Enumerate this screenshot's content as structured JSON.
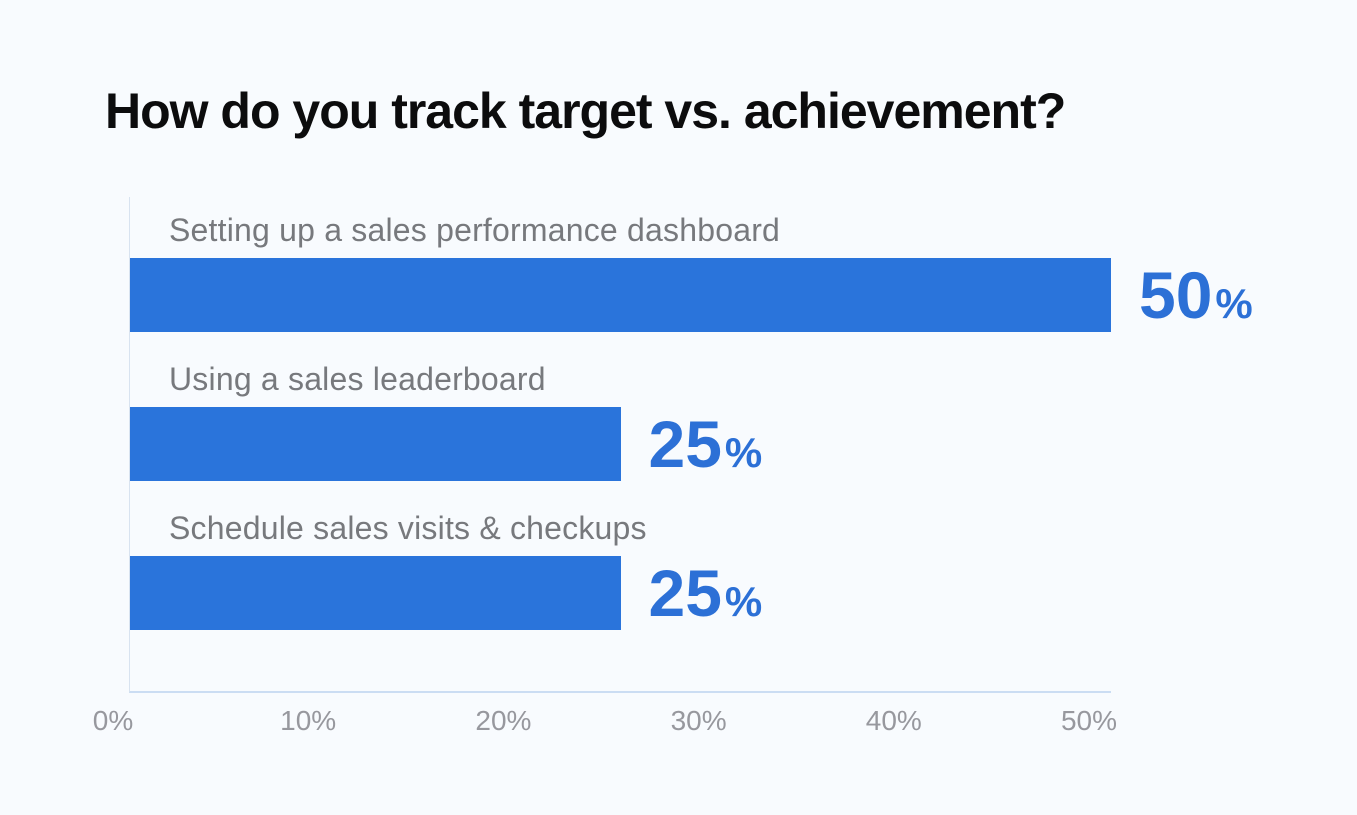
{
  "chart_data": {
    "type": "bar",
    "orientation": "horizontal",
    "title": "How do you track target vs. achievement?",
    "categories": [
      "Setting up a sales performance dashboard",
      "Using a sales leaderboard",
      "Schedule sales visits & checkups"
    ],
    "values": [
      50,
      25,
      25
    ],
    "value_labels": [
      "50",
      "25",
      "25"
    ],
    "unit": "%",
    "xlabel": "",
    "ylabel": "",
    "xlim": [
      0,
      50
    ],
    "tick_labels": [
      "0%",
      "10%",
      "20%",
      "30%",
      "40%",
      "50%"
    ],
    "grid": false,
    "legend": false,
    "colors": {
      "bar": "#2a74db",
      "value_text": "#2c70d6",
      "category_label": "#77797d",
      "tick_label": "#97989e",
      "axis_line": "#cbddf3",
      "title": "#0c0c0d",
      "background": "#f8fbfe"
    }
  }
}
